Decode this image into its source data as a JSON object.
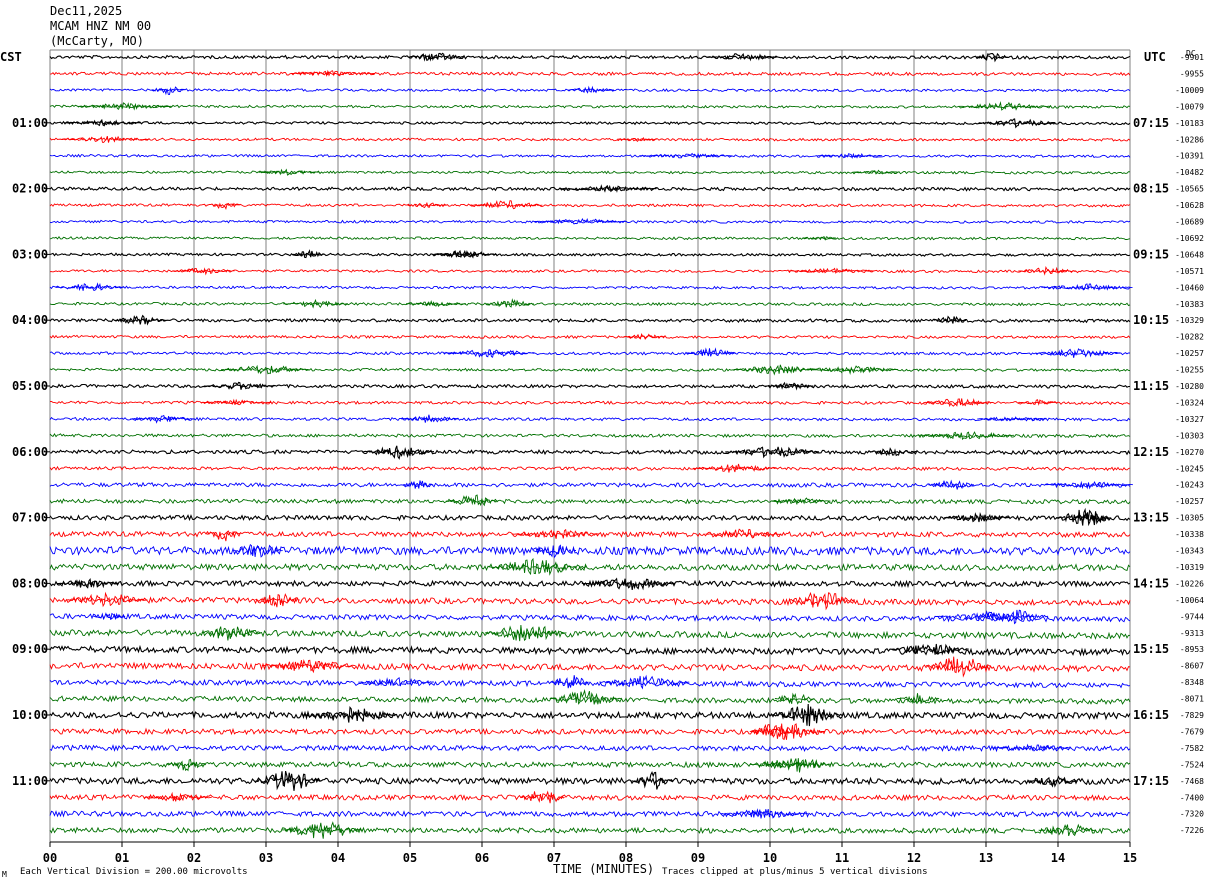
{
  "header": {
    "date": "Dec11,2025",
    "station": "MCAM HNZ NM 00",
    "location": "(McCarty, MO)"
  },
  "labels": {
    "left_timezone": "CST",
    "right_timezone": "UTC",
    "dc": "DC",
    "corner_mark": "M",
    "scale_note": "Each Vertical Division =  200.00 microvolts",
    "clip_note": "Traces clipped at plus/minus 5 vertical divisions"
  },
  "colors": {
    "trace_cycle": [
      "#000000",
      "#ff0000",
      "#0000ff",
      "#007000"
    ],
    "grid": "#808080"
  },
  "chart_data": {
    "type": "line",
    "title": "",
    "xlabel": "TIME (MINUTES)",
    "xlim": [
      0,
      15
    ],
    "x_ticks": [
      "00",
      "01",
      "02",
      "03",
      "04",
      "05",
      "06",
      "07",
      "08",
      "09",
      "10",
      "11",
      "12",
      "13",
      "14",
      "15"
    ],
    "left_hour_labels": [
      "01:00",
      "02:00",
      "03:00",
      "04:00",
      "05:00",
      "06:00",
      "07:00",
      "08:00",
      "09:00",
      "10:00",
      "11:00"
    ],
    "right_hour_labels": [
      "07:15",
      "08:15",
      "09:15",
      "10:15",
      "11:15",
      "12:15",
      "13:15",
      "14:15",
      "15:15",
      "16:15",
      "17:15"
    ],
    "dc_offsets": [
      "-9901",
      "-9955",
      "-10009",
      "-10079",
      "-10183",
      "-10286",
      "-10391",
      "-10482",
      "-10565",
      "-10628",
      "-10689",
      "-10692",
      "-10648",
      "-10571",
      "-10460",
      "-10383",
      "-10329",
      "-10282",
      "-10257",
      "-10255",
      "-10280",
      "-10324",
      "-10327",
      "-10303",
      "-10270",
      "-10245",
      "-10243",
      "-10257",
      "-10305",
      "-10338",
      "-10343",
      "-10319",
      "-10226",
      "-10064",
      "-9744",
      "-9313",
      "-8953",
      "-8607",
      "-8348",
      "-8071",
      "-7829",
      "-7679",
      "-7582",
      "-7524",
      "-7468",
      "-7400",
      "-7320",
      "-7226"
    ],
    "noise_level": [
      1.5,
      1.5,
      1.2,
      1.2,
      1.2,
      1.2,
      1.2,
      1.2,
      1.5,
      1.3,
      1.2,
      1.2,
      1.2,
      1.2,
      1.2,
      1.3,
      1.5,
      1.3,
      1.3,
      1.3,
      1.5,
      1.4,
      1.4,
      1.5,
      1.8,
      1.5,
      2,
      2,
      2.2,
      2.5,
      4,
      3,
      2.5,
      2.8,
      2.5,
      3,
      3,
      3,
      2.5,
      2.5,
      3,
      2.5,
      2.5,
      2.5,
      3,
      2.5,
      2.5,
      2.5
    ]
  }
}
